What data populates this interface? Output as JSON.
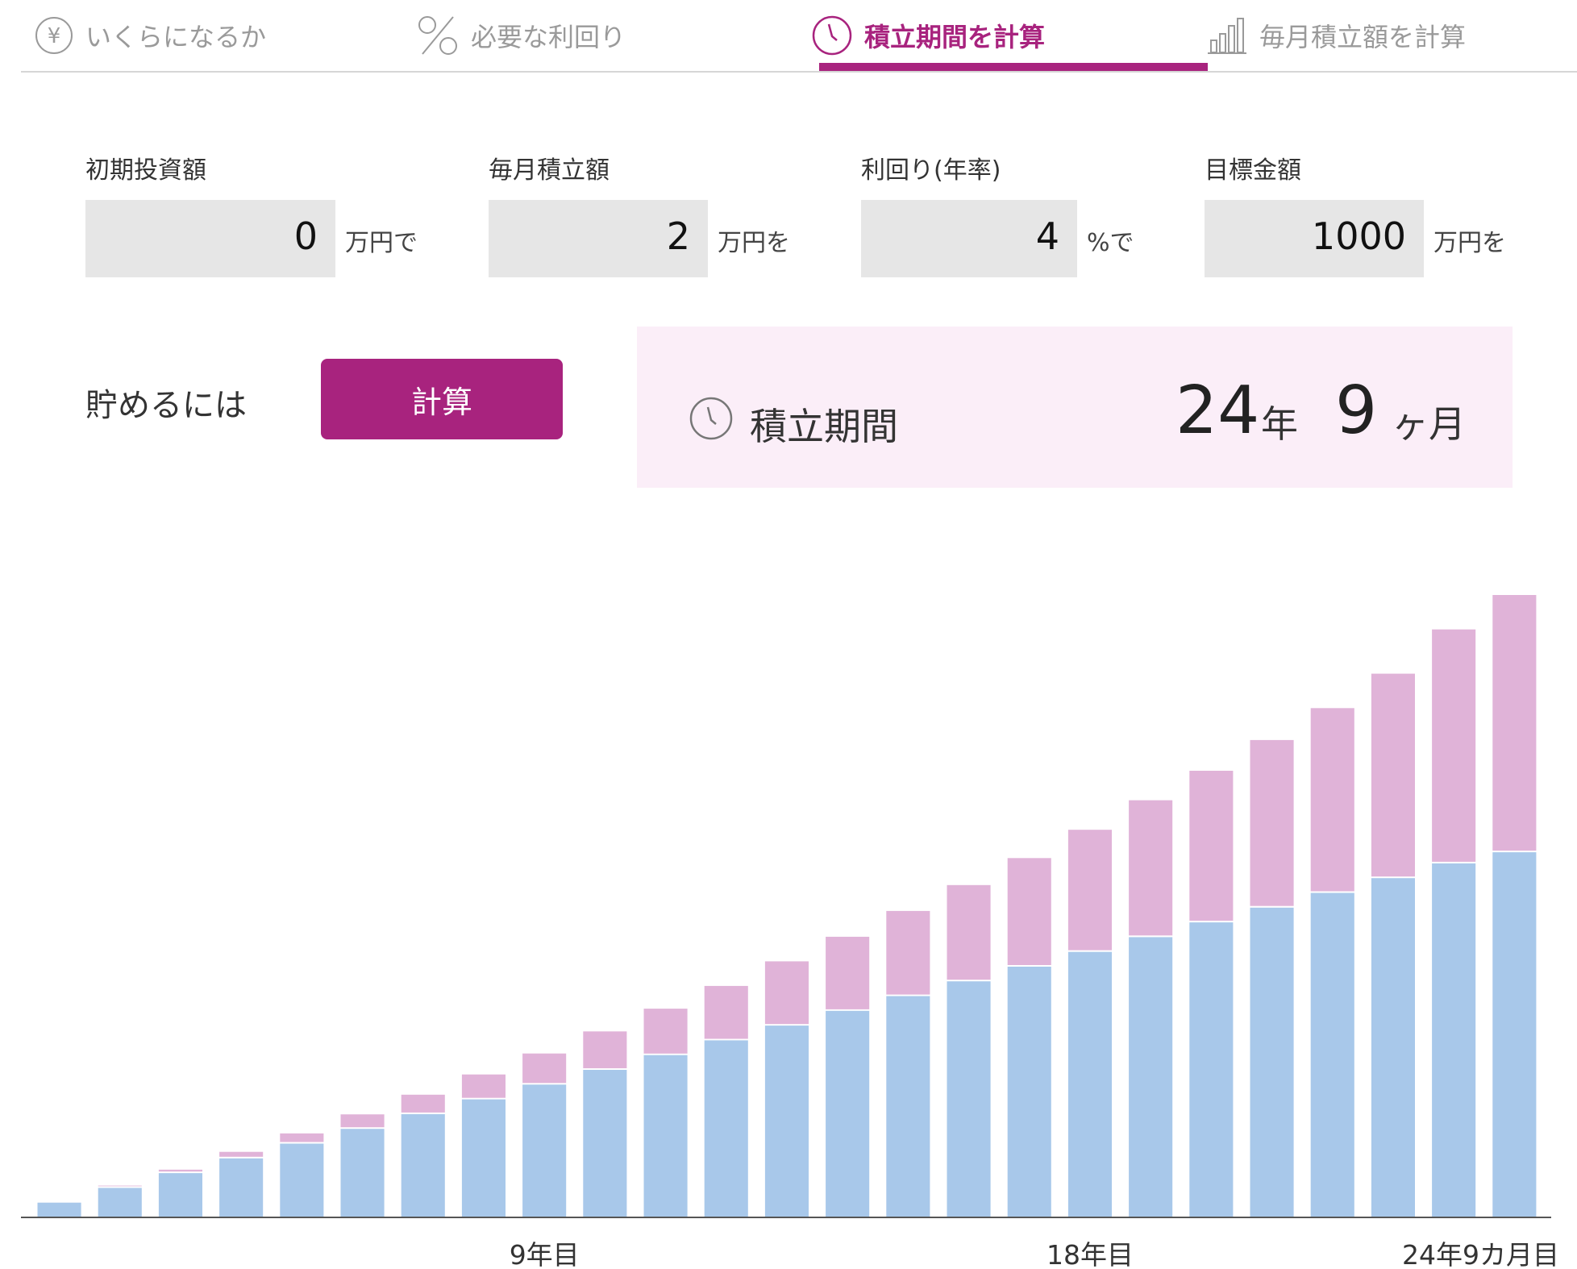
{
  "tabs": [
    {
      "label": "いくらになるか",
      "icon": "yen-icon",
      "active": false
    },
    {
      "label": "必要な利回り",
      "icon": "percent-icon",
      "active": false
    },
    {
      "label": "積立期間を計算",
      "icon": "clock-icon",
      "active": true
    },
    {
      "label": "毎月積立額を計算",
      "icon": "bar-chart-icon",
      "active": false
    }
  ],
  "form": {
    "initial": {
      "label": "初期投資額",
      "value": "0",
      "unit": "万円で"
    },
    "monthly": {
      "label": "毎月積立額",
      "value": "2",
      "unit": "万円を"
    },
    "rate": {
      "label": "利回り(年率)",
      "value": "4",
      "unit": "%で"
    },
    "target": {
      "label": "目標金額",
      "value": "1000",
      "unit": "万円を"
    }
  },
  "action": {
    "prefix": "貯めるには",
    "button_label": "計算"
  },
  "result": {
    "label": "積立期間",
    "years": "24",
    "years_unit": "年",
    "months": "9",
    "months_unit": "ヶ月"
  },
  "colors": {
    "accent": "#a8237e",
    "principal": "#a8c8ea",
    "interest": "#e0b3d8",
    "result_bg": "#fbeef8"
  },
  "chart_data": {
    "type": "bar",
    "stacked": true,
    "x_tick_labels": [
      "9年目",
      "18年目",
      "24年9カ月目"
    ],
    "series": [
      {
        "values": [
          24,
          48,
          72,
          96,
          120,
          144,
          168,
          192,
          216,
          240,
          264,
          288,
          312,
          336,
          360,
          384,
          408,
          432,
          456,
          480,
          504,
          528,
          552,
          576,
          594
        ]
      },
      {
        "values": [
          0,
          1,
          3,
          8,
          14,
          21,
          29,
          38,
          48,
          60,
          73,
          86,
          102,
          118,
          136,
          154,
          174,
          196,
          220,
          244,
          270,
          298,
          330,
          378,
          416
        ]
      }
    ]
  }
}
